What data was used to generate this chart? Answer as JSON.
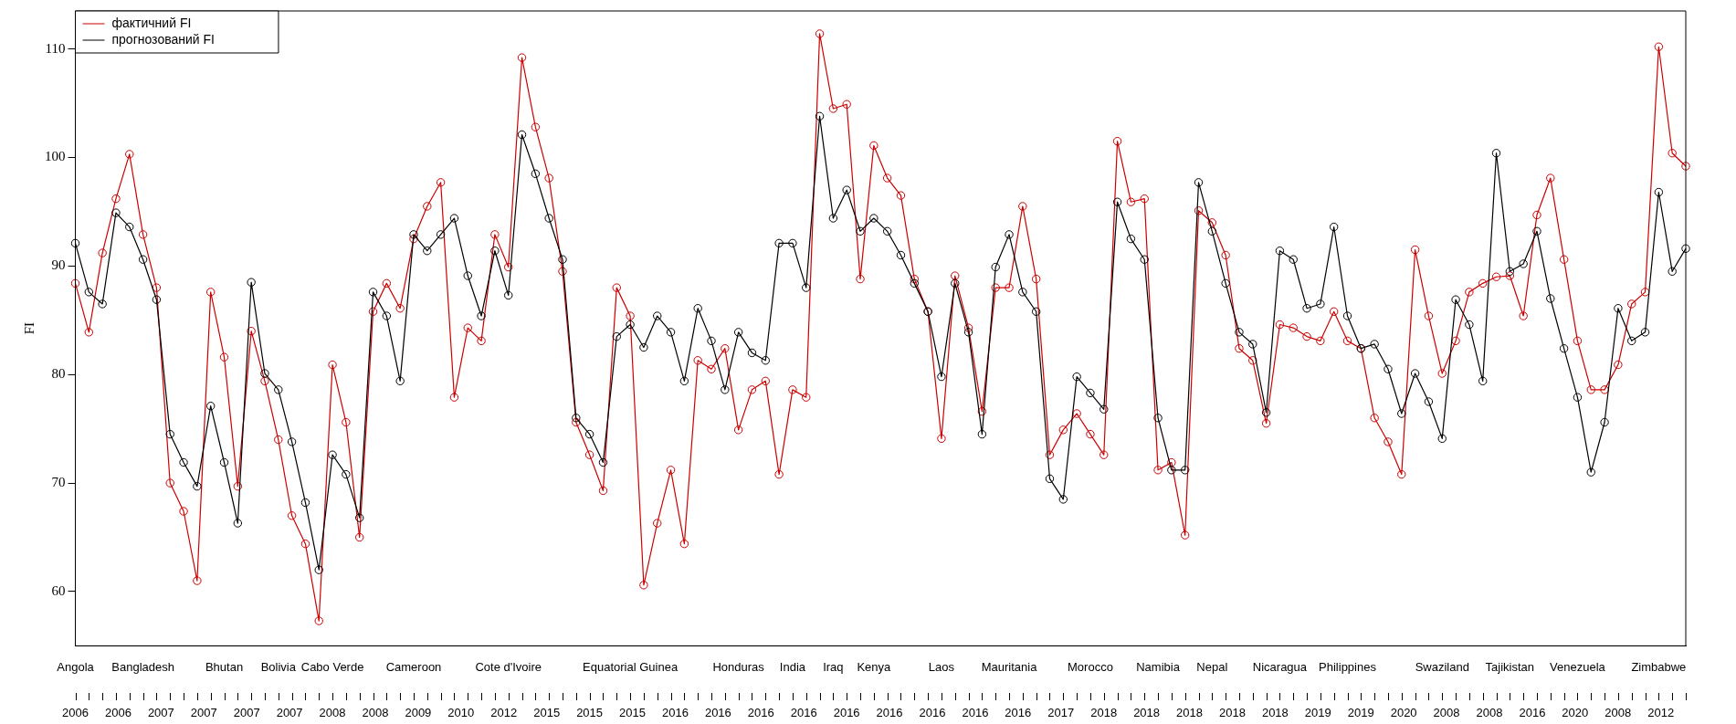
{
  "chart_data": {
    "type": "line",
    "ylabel": "FI",
    "categories": [
      "Angola",
      null,
      null,
      null,
      null,
      "Bangladesh",
      null,
      null,
      null,
      null,
      null,
      "Bhutan",
      null,
      null,
      null,
      "Bolivia",
      null,
      null,
      null,
      "Cabo Verde",
      null,
      null,
      null,
      null,
      null,
      "Cameroon",
      null,
      null,
      null,
      null,
      null,
      null,
      "Cote d'Ivoire",
      null,
      null,
      null,
      null,
      null,
      null,
      null,
      null,
      "Equatorial Guinea",
      null,
      null,
      null,
      null,
      null,
      null,
      null,
      "Honduras",
      null,
      null,
      null,
      "India",
      null,
      null,
      "Iraq",
      null,
      null,
      "Kenya",
      null,
      null,
      null,
      null,
      "Laos",
      null,
      null,
      null,
      null,
      "Mauritania",
      null,
      null,
      null,
      null,
      null,
      "Morocco",
      null,
      null,
      null,
      null,
      "Namibia",
      null,
      null,
      null,
      "Nepal",
      null,
      null,
      null,
      null,
      "Nicaragua",
      null,
      null,
      null,
      null,
      "Philippines",
      null,
      null,
      null,
      null,
      null,
      null,
      "Swaziland",
      null,
      null,
      null,
      null,
      "Tajikistan",
      null,
      null,
      null,
      null,
      "Venezuela",
      null,
      null,
      null,
      null,
      null,
      "Zimbabwe",
      null,
      null
    ],
    "annotations": [
      "2006",
      "2006",
      "2007",
      "2007",
      "2007",
      "2007",
      "2008",
      "2008",
      "2009",
      "2010",
      "2012",
      "2015",
      "2015",
      "2015",
      "2016",
      "2016",
      "2016",
      "2016",
      "2016",
      "2016",
      "2016",
      "2016",
      "2016",
      "2017",
      "2018",
      "2018",
      "2018",
      "2018",
      "2018",
      "2019",
      "2019",
      "2020",
      "2008",
      "2008",
      "2016",
      "2020",
      "2008",
      "2012"
    ],
    "series": [
      {
        "name": "фактичний FI",
        "color": "#cc0000",
        "values": [
          88.4,
          83.9,
          91.2,
          96.2,
          100.3,
          92.9,
          88.0,
          70.0,
          67.4,
          61.0,
          87.6,
          81.6,
          69.7,
          84.0,
          79.4,
          74.0,
          67.0,
          64.4,
          57.3,
          80.9,
          75.6,
          65.0,
          85.8,
          88.4,
          86.1,
          92.5,
          95.5,
          97.7,
          77.9,
          84.3,
          83.1,
          92.9,
          89.9,
          109.2,
          102.8,
          98.1,
          89.5,
          75.6,
          72.6,
          69.3,
          88.0,
          85.4,
          60.6,
          66.3,
          71.2,
          64.4,
          81.3,
          80.5,
          82.4,
          74.9,
          78.6,
          79.4,
          70.8,
          78.6,
          77.9,
          111.4,
          104.5,
          104.9,
          88.8,
          101.1,
          98.1,
          96.5,
          88.8,
          85.8,
          74.1,
          89.1,
          84.3,
          76.6,
          88.0,
          88.0,
          95.5,
          88.8,
          72.6,
          74.9,
          76.4,
          74.5,
          72.6,
          101.5,
          95.9,
          96.2,
          71.2,
          71.9,
          65.2,
          95.1,
          94.0,
          91.0,
          82.4,
          81.3,
          75.5,
          84.6,
          84.3,
          83.5,
          83.1,
          85.8,
          83.1,
          82.4,
          76.0,
          73.8,
          70.8,
          91.5,
          85.4,
          80.1,
          83.1,
          87.6,
          88.4,
          89.0,
          89.1,
          85.4,
          94.7,
          98.1,
          90.6,
          83.1,
          78.6,
          78.6,
          80.9,
          86.5,
          87.6,
          110.2,
          100.4,
          99.2
        ]
      },
      {
        "name": "прогнозований FI",
        "color": "#000000",
        "values": [
          92.1,
          87.6,
          86.5,
          94.9,
          93.6,
          90.6,
          86.9,
          74.5,
          71.9,
          69.7,
          77.1,
          71.9,
          66.3,
          88.5,
          80.1,
          78.6,
          73.8,
          68.2,
          62.0,
          72.6,
          70.8,
          66.8,
          87.6,
          85.4,
          79.4,
          92.9,
          91.4,
          92.9,
          94.4,
          89.1,
          85.4,
          91.4,
          87.3,
          102.1,
          98.5,
          94.4,
          90.6,
          76.0,
          74.5,
          71.9,
          83.5,
          84.6,
          82.5,
          85.4,
          83.9,
          79.4,
          86.1,
          83.1,
          78.6,
          83.9,
          82.0,
          81.3,
          92.1,
          92.1,
          88.0,
          103.8,
          94.4,
          97.0,
          93.2,
          94.4,
          93.2,
          91.0,
          88.4,
          85.8,
          79.8,
          88.4,
          83.9,
          74.5,
          89.9,
          92.9,
          87.6,
          85.8,
          70.4,
          68.5,
          79.8,
          78.3,
          76.8,
          95.9,
          92.5,
          90.6,
          76.0,
          71.2,
          71.2,
          97.7,
          93.2,
          88.4,
          83.9,
          82.8,
          76.5,
          91.4,
          90.6,
          86.1,
          86.5,
          93.6,
          85.4,
          82.4,
          82.8,
          80.5,
          76.4,
          80.1,
          77.5,
          74.1,
          86.9,
          84.6,
          79.4,
          100.4,
          89.5,
          90.2,
          93.2,
          87.0,
          82.4,
          77.9,
          71.0,
          75.6,
          86.1,
          83.1,
          83.9,
          96.8,
          89.5,
          91.6
        ]
      }
    ],
    "ylim": [
      55,
      113.5
    ],
    "yticks": [
      60,
      70,
      80,
      90,
      100,
      110
    ],
    "legend": "top left",
    "marker": "circle",
    "line_style": "solid"
  }
}
